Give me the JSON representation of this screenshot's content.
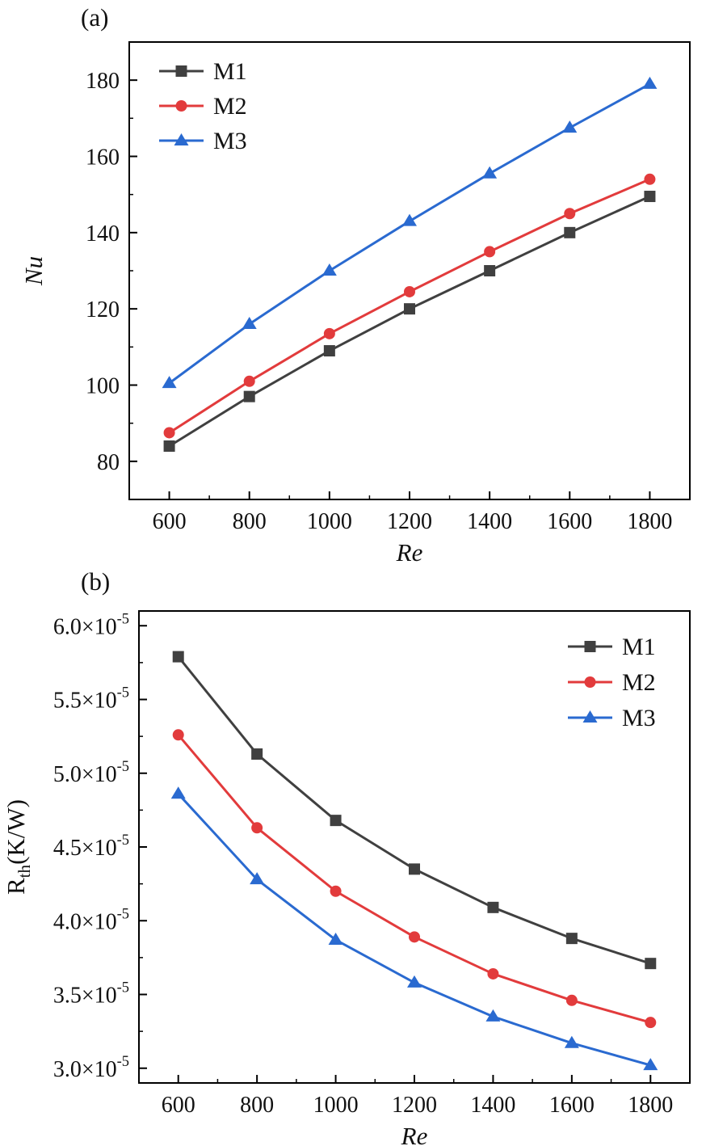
{
  "panels": [
    {
      "label": "(a)"
    },
    {
      "label": "(b)"
    }
  ],
  "colors": {
    "m1": "#404040",
    "m2": "#e23b3c",
    "m3": "#2a6ad0",
    "axis": "#000000"
  },
  "chart_data": [
    {
      "type": "line",
      "panel": "(a)",
      "title": "",
      "xlabel": "Re",
      "xlabel_italic": true,
      "ylabel": "Nu",
      "ylabel_italic": true,
      "ylabel_parts": [
        {
          "t": "Nu"
        }
      ],
      "xlim": [
        500,
        1900
      ],
      "ylim": [
        70,
        190
      ],
      "grid": false,
      "legend_position": "top-left",
      "x": [
        600,
        800,
        1000,
        1200,
        1400,
        1600,
        1800
      ],
      "xticks": [
        {
          "v": 600,
          "label": "600"
        },
        {
          "v": 800,
          "label": "800"
        },
        {
          "v": 1000,
          "label": "1000"
        },
        {
          "v": 1200,
          "label": "1200"
        },
        {
          "v": 1400,
          "label": "1400"
        },
        {
          "v": 1600,
          "label": "1600"
        },
        {
          "v": 1800,
          "label": "1800"
        }
      ],
      "yticks": [
        {
          "v": 80,
          "label": "80"
        },
        {
          "v": 100,
          "label": "100"
        },
        {
          "v": 120,
          "label": "120"
        },
        {
          "v": 140,
          "label": "140"
        },
        {
          "v": 160,
          "label": "160"
        },
        {
          "v": 180,
          "label": "180"
        }
      ],
      "series": [
        {
          "name": "M1",
          "marker": "square",
          "color": "#404040",
          "values": [
            84,
            97,
            109,
            120,
            130,
            140,
            149.5
          ]
        },
        {
          "name": "M2",
          "marker": "circle",
          "color": "#e23b3c",
          "values": [
            87.5,
            101,
            113.5,
            124.5,
            135,
            145,
            154
          ]
        },
        {
          "name": "M3",
          "marker": "triangle",
          "color": "#2a6ad0",
          "values": [
            100.5,
            116,
            130,
            143,
            155.5,
            167.5,
            179
          ]
        }
      ]
    },
    {
      "type": "line",
      "panel": "(b)",
      "title": "",
      "xlabel": "Re",
      "xlabel_italic": true,
      "ylabel": "Rth(K/W)",
      "ylabel_italic": false,
      "ylabel_parts": [
        {
          "t": "R"
        },
        {
          "t": "th",
          "sub": true
        },
        {
          "t": "(K/W)"
        }
      ],
      "xlim": [
        500,
        1900
      ],
      "ylim": [
        2.9,
        6.1
      ],
      "value_unit": "K/W",
      "value_scale": "1e-5",
      "grid": false,
      "legend_position": "top-right",
      "x": [
        600,
        800,
        1000,
        1200,
        1400,
        1600,
        1800
      ],
      "xticks": [
        {
          "v": 600,
          "label": "600"
        },
        {
          "v": 800,
          "label": "800"
        },
        {
          "v": 1000,
          "label": "1000"
        },
        {
          "v": 1200,
          "label": "1200"
        },
        {
          "v": 1400,
          "label": "1400"
        },
        {
          "v": 1600,
          "label": "1600"
        },
        {
          "v": 1800,
          "label": "1800"
        }
      ],
      "yticks": [
        {
          "v": 3.0,
          "label": "3.0×10",
          "sup": "-5"
        },
        {
          "v": 3.5,
          "label": "3.5×10",
          "sup": "-5"
        },
        {
          "v": 4.0,
          "label": "4.0×10",
          "sup": "-5"
        },
        {
          "v": 4.5,
          "label": "4.5×10",
          "sup": "-5"
        },
        {
          "v": 5.0,
          "label": "5.0×10",
          "sup": "-5"
        },
        {
          "v": 5.5,
          "label": "5.5×10",
          "sup": "-5"
        },
        {
          "v": 6.0,
          "label": "6.0×10",
          "sup": "-5"
        }
      ],
      "series": [
        {
          "name": "M1",
          "marker": "square",
          "color": "#404040",
          "values": [
            5.79,
            5.13,
            4.68,
            4.35,
            4.09,
            3.88,
            3.71
          ]
        },
        {
          "name": "M2",
          "marker": "circle",
          "color": "#e23b3c",
          "values": [
            5.26,
            4.63,
            4.2,
            3.89,
            3.64,
            3.46,
            3.31
          ]
        },
        {
          "name": "M3",
          "marker": "triangle",
          "color": "#2a6ad0",
          "values": [
            4.86,
            4.28,
            3.87,
            3.58,
            3.35,
            3.17,
            3.02
          ]
        }
      ]
    }
  ]
}
